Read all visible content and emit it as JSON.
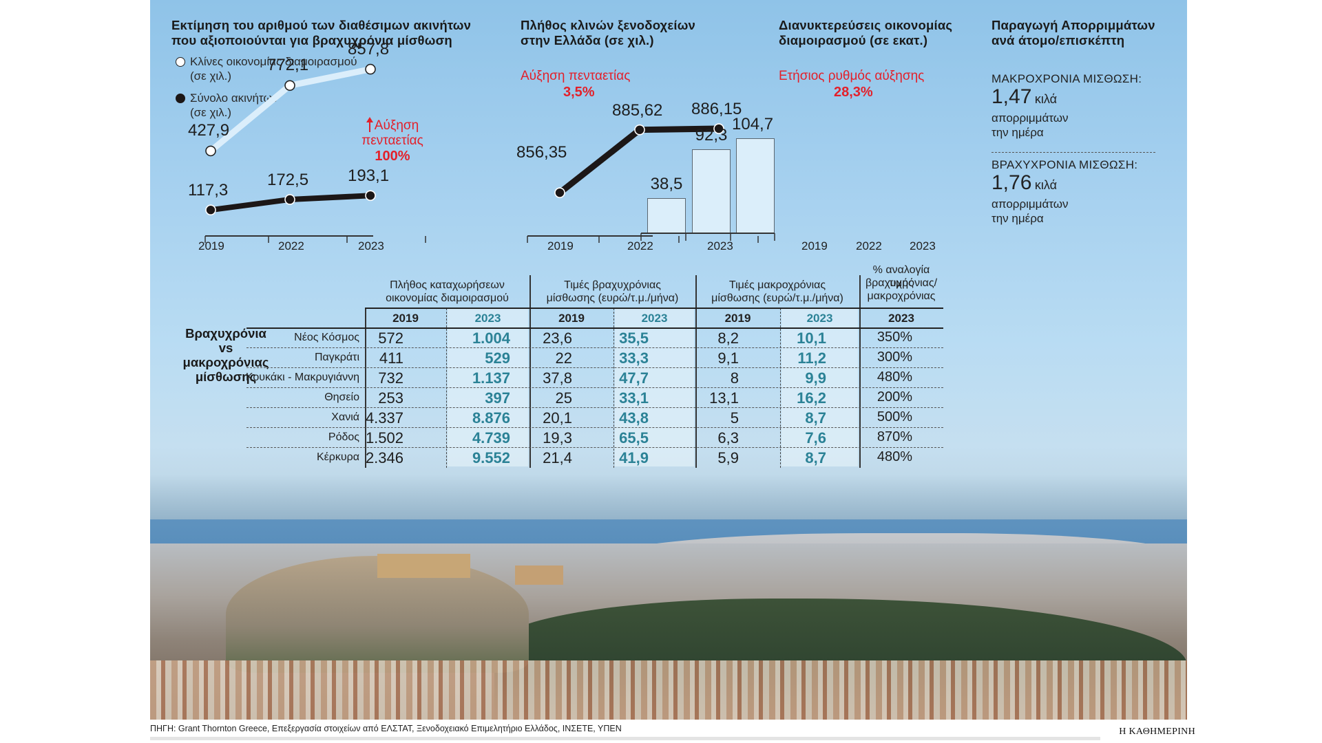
{
  "chart_data": [
    {
      "type": "line",
      "title": "Εκτίμηση του αριθμού των διαθέσιμων ακινήτων που αξιοποιούνται για βραχυχρόνια μίσθωση",
      "categories": [
        "2019",
        "2022",
        "2023"
      ],
      "series": [
        {
          "name": "Κλίνες οικονομίας διαμοιρασμού",
          "unit": "(σε χιλ.)",
          "marker": "open",
          "values": [
            427.9,
            772.1,
            857.8
          ],
          "labels": [
            "427,9",
            "772,1",
            "857,8"
          ]
        },
        {
          "name": "Σύνολο ακινήτων",
          "unit": "(σε χιλ.)",
          "marker": "filled",
          "values": [
            117.3,
            172.5,
            193.1
          ],
          "labels": [
            "117,3",
            "172,5",
            "193,1"
          ]
        }
      ],
      "annotation": {
        "text_line1": "Αύξηση",
        "text_line2": "πενταετίας",
        "value": "100%"
      },
      "grid": false
    },
    {
      "type": "line",
      "title": "Πλήθος κλινών ξενοδοχείων στην Ελλάδα (σε χιλ.)",
      "categories": [
        "2019",
        "2022",
        "2023"
      ],
      "series": [
        {
          "name": "Κλίνες ξενοδοχείων",
          "values": [
            856.35,
            885.62,
            886.15
          ],
          "labels": [
            "856,35",
            "885,62",
            "886,15"
          ]
        }
      ],
      "annotation": {
        "text": "Αύξηση πενταετίας",
        "value": "3,5%"
      },
      "grid": false
    },
    {
      "type": "bar",
      "title": "Διανυκτερεύσεις οικονομίας διαμοιρασμού (σε εκατ.)",
      "categories": [
        "2019",
        "2022",
        "2023"
      ],
      "values": [
        38.5,
        92.3,
        104.7
      ],
      "labels": [
        "38,5",
        "92,3",
        "104,7"
      ],
      "annotation": {
        "text": "Ετήσιος ρυθμός αύξησης",
        "value": "28,3%"
      },
      "grid": false
    },
    {
      "type": "table",
      "title": "Βραχυχρόνια vs μακροχρόνιας μίσθωσης",
      "column_groups": [
        {
          "label_line1": "Πλήθος καταχωρήσεων",
          "label_line2": "οικονομίας διαμοιρασμού",
          "years": [
            "2019",
            "2023"
          ]
        },
        {
          "label_line1": "Τιμές βραχυχρόνιας",
          "label_line2": "μίσθωσης (ευρώ/τ.μ./μήνα)",
          "years": [
            "2019",
            "2023"
          ]
        },
        {
          "label_line1": "Τιμές μακροχρόνιας",
          "label_line2": "μίσθωσης (ευρώ/τ.μ./μήνα)",
          "years": [
            "2019",
            "2023"
          ]
        },
        {
          "label_line1": "% αναλογία τιμής",
          "label_line2": "βραχυχρόνιας/",
          "label_line3": "μακροχρόνιας",
          "years": [
            "2023"
          ]
        }
      ],
      "rows": [
        {
          "area": "Νέος Κόσμος",
          "cells": [
            "572",
            "1.004",
            "23,6",
            "35,5",
            "8,2",
            "10,1",
            "350%"
          ]
        },
        {
          "area": "Παγκράτι",
          "cells": [
            "411",
            "529",
            "22",
            "33,3",
            "9,1",
            "11,2",
            "300%"
          ]
        },
        {
          "area": "Κουκάκι - Μακρυγιάννη",
          "cells": [
            "732",
            "1.137",
            "37,8",
            "47,7",
            "8",
            "9,9",
            "480%"
          ]
        },
        {
          "area": "Θησείο",
          "cells": [
            "253",
            "397",
            "25",
            "33,1",
            "13,1",
            "16,2",
            "200%"
          ]
        },
        {
          "area": "Χανιά",
          "cells": [
            "4.337",
            "8.876",
            "20,1",
            "43,8",
            "5",
            "8,7",
            "500%"
          ]
        },
        {
          "area": "Ρόδος",
          "cells": [
            "1.502",
            "4.739",
            "19,3",
            "65,5",
            "6,3",
            "7,6",
            "870%"
          ]
        },
        {
          "area": "Κέρκυρα",
          "cells": [
            "2.346",
            "9.552",
            "21,4",
            "41,9",
            "5,9",
            "8,7",
            "480%"
          ]
        }
      ]
    }
  ],
  "chart1": {
    "title_line1": "Εκτίμηση του αριθμού των διαθέσιμων ακινήτων",
    "title_line2": "που αξιοποιούνται για βραχυχρόνια μίσθωση",
    "legend": [
      {
        "label": "Κλίνες οικονομίας διαμοιρασμού",
        "unit": "(σε χιλ.)"
      },
      {
        "label": "Σύνολο ακινήτων",
        "unit": "(σε χιλ.)"
      }
    ],
    "beds": {
      "values": [
        427.9,
        772.1,
        857.8
      ],
      "labels": [
        "427,9",
        "772,1",
        "857,8"
      ]
    },
    "total": {
      "values": [
        117.3,
        172.5,
        193.1
      ],
      "labels": [
        "117,3",
        "172,5",
        "193,1"
      ]
    },
    "ann_line1": "Αύξηση",
    "ann_line2": "πενταετίας",
    "ann_value": "100%",
    "years": [
      "2019",
      "2022",
      "2023"
    ]
  },
  "chart2": {
    "title_line1": "Πλήθος κλινών ξενοδοχείων",
    "title_line2": "στην Ελλάδα (σε χιλ.)",
    "ann_text": "Αύξηση πενταετίας",
    "ann_value": "3,5%",
    "values": [
      856.35,
      885.62,
      886.15
    ],
    "labels": [
      "856,35",
      "885,62",
      "886,15"
    ],
    "years": [
      "2019",
      "2022",
      "2023"
    ]
  },
  "chart3": {
    "title_line1": "Διανυκτερεύσεις οικονομίας",
    "title_line2": "διαμοιρασμού (σε εκατ.)",
    "ann_text": "Ετήσιος ρυθμός αύξησης",
    "ann_value": "28,3%",
    "values": [
      38.5,
      92.3,
      104.7
    ],
    "labels": [
      "38,5",
      "92,3",
      "104,7"
    ],
    "years": [
      "2019",
      "2022",
      "2023"
    ]
  },
  "waste": {
    "title_line1": "Παραγωγή Απορριμμάτων",
    "title_line2": "ανά άτομο/επισκέπτη",
    "long_label": "ΜΑΚΡΟΧΡΟΝΙΑ ΜΙΣΘΩΣΗ:",
    "long_value": "1,47",
    "short_label": "ΒΡΑΧΥΧΡΟΝΙΑ ΜΙΣΘΩΣΗ:",
    "short_value": "1,76",
    "unit": "κιλά",
    "desc_line1": "απορριμμάτων",
    "desc_line2": "την ημέρα"
  },
  "table": {
    "side_title_line1": "Βραχυχρόνια",
    "side_title_line2": "vs",
    "side_title_line3": "μακροχρόνιας",
    "side_title_line4": "μίσθωσης",
    "groups": [
      {
        "l1": "Πλήθος καταχωρήσεων",
        "l2": "οικονομίας διαμοιρασμού"
      },
      {
        "l1": "Τιμές βραχυχρόνιας",
        "l2": "μίσθωσης (ευρώ/τ.μ./μήνα)"
      },
      {
        "l1": "Τιμές μακροχρόνιας",
        "l2": "μίσθωσης (ευρώ/τ.μ./μήνα)"
      },
      {
        "l1": "% αναλογία τιμής",
        "l2": "βραχυχρόνιας/",
        "l3": "μακροχρόνιας"
      }
    ],
    "years": [
      "2019",
      "2023",
      "2019",
      "2023",
      "2019",
      "2023",
      "2023"
    ],
    "rows": [
      {
        "area": "Νέος Κόσμος",
        "cells": [
          "572",
          "1.004",
          "23,6",
          "35,5",
          "8,2",
          "10,1",
          "350%"
        ]
      },
      {
        "area": "Παγκράτι",
        "cells": [
          "411",
          "529",
          "22",
          "33,3",
          "9,1",
          "11,2",
          "300%"
        ]
      },
      {
        "area": "Κουκάκι - Μακρυγιάννη",
        "cells": [
          "732",
          "1.137",
          "37,8",
          "47,7",
          "8",
          "9,9",
          "480%"
        ]
      },
      {
        "area": "Θησείο",
        "cells": [
          "253",
          "397",
          "25",
          "33,1",
          "13,1",
          "16,2",
          "200%"
        ]
      },
      {
        "area": "Χανιά",
        "cells": [
          "4.337",
          "8.876",
          "20,1",
          "43,8",
          "5",
          "8,7",
          "500%"
        ]
      },
      {
        "area": "Ρόδος",
        "cells": [
          "1.502",
          "4.739",
          "19,3",
          "65,5",
          "6,3",
          "7,6",
          "870%"
        ]
      },
      {
        "area": "Κέρκυρα",
        "cells": [
          "2.346",
          "9.552",
          "21,4",
          "41,9",
          "5,9",
          "8,7",
          "480%"
        ]
      }
    ]
  },
  "footer": {
    "source": "ΠΗΓΗ: Grant Thornton Greece, Επεξεργασία στοιχείων από ΕΛΣΤΑΤ, Ξενοδοχειακό Επιμελητήριο Ελλάδος, ΙΝΣΕΤΕ, ΥΠΕΝ",
    "brand": "Η ΚΑΘΗΜΕΡΙΝΗ"
  },
  "colors": {
    "accent_red": "#e3202a",
    "highlight_teal": "#2b8296",
    "line_dark": "#1c1717",
    "line_light": "#dbeefb"
  }
}
